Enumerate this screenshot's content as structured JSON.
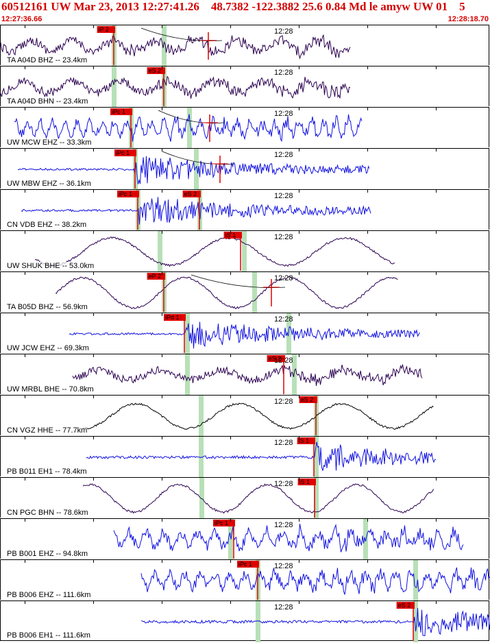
{
  "header": {
    "title": "60512161 UW Mar 23, 2013 12:27:41.26    48.7382 -122.3882 25.6 0.84 Md le amyw UW 01    5",
    "start_time": "12:27:36.66",
    "end_time": "12:28:18.70"
  },
  "time_mark_label": "12:28",
  "colors": {
    "header": "#d40000",
    "pick": "#e00000",
    "window": "#b8e0b8",
    "blue": "#1010e0",
    "purple": "#2a0050",
    "black": "#000000"
  },
  "traces": [
    {
      "label": "TA A04D BHZ -- 23.4km",
      "color": "purple",
      "style": "noisy",
      "start": 0,
      "end": 510,
      "amp": 14,
      "period": 60,
      "onset": 150,
      "windows": [
        165,
        238
      ],
      "picks": [
        {
          "text": "iP 2",
          "x": 165
        },
        {
          "text": "",
          "x": 303
        }
      ],
      "curve": true
    },
    {
      "label": "TA A04D BHN -- 23.4km",
      "color": "purple",
      "style": "noisy",
      "start": 0,
      "end": 510,
      "amp": 14,
      "period": 70,
      "onset": 220,
      "windows": [
        165,
        238
      ],
      "picks": [
        {
          "text": "eS 2",
          "x": 238
        }
      ]
    },
    {
      "label": "UW MCW EHZ -- 33.3km",
      "color": "blue",
      "style": "noisy",
      "start": 20,
      "end": 528,
      "amp": 15,
      "period": 18,
      "onset": 185,
      "windows": [
        190,
        275
      ],
      "picks": [
        {
          "text": "iPc 1",
          "x": 190
        },
        {
          "text": "",
          "x": 305
        }
      ],
      "curve": true
    },
    {
      "label": "UW MBW EHZ -- 36.1km",
      "color": "blue",
      "style": "burst",
      "start": 25,
      "end": 538,
      "amp": 3,
      "period": 10,
      "onset": 195,
      "windows": [
        196,
        285
      ],
      "picks": [
        {
          "text": "iPc 1",
          "x": 196
        },
        {
          "text": "",
          "x": 320
        }
      ],
      "curve": true
    },
    {
      "label": "CN VDB EHZ -- 38.2km",
      "color": "blue",
      "style": "burst",
      "start": 30,
      "end": 540,
      "amp": 3,
      "period": 10,
      "onset": 200,
      "windows": [
        200,
        290
      ],
      "picks": [
        {
          "text": "iPc 1",
          "x": 200
        },
        {
          "text": "eS 2",
          "x": 290
        }
      ]
    },
    {
      "label": "UW SHUK BHE -- 53.0km",
      "color": "purple",
      "style": "wave",
      "start": 50,
      "end": 575,
      "amp": 20,
      "period": 170,
      "onset": 9999,
      "windows": [
        232,
        355
      ],
      "picks": [
        {
          "text": "iS 1",
          "x": 350
        }
      ]
    },
    {
      "label": "TA B05D BHZ -- 56.9km",
      "color": "purple",
      "style": "wave",
      "start": 80,
      "end": 580,
      "amp": 22,
      "period": 150,
      "onset": 235,
      "windows": [
        238,
        370
      ],
      "picks": [
        {
          "text": "eP 2",
          "x": 238
        },
        {
          "text": "",
          "x": 395
        }
      ],
      "curve": true
    },
    {
      "label": "UW JCW EHZ -- 69.3km",
      "color": "blue",
      "style": "burst",
      "start": 100,
      "end": 612,
      "amp": 3,
      "period": 10,
      "onset": 268,
      "windows": [
        272,
        420
      ],
      "picks": [
        {
          "text": "iPd 1",
          "x": 268
        }
      ]
    },
    {
      "label": "UW MRBL BHE -- 70.8km",
      "color": "purple",
      "style": "noisy",
      "start": 105,
      "end": 615,
      "amp": 12,
      "period": 90,
      "onset": 410,
      "windows": [
        272,
        428
      ],
      "picks": [
        {
          "text": "eS 2",
          "x": 413
        }
      ]
    },
    {
      "label": "CN VGZ HHE -- 77.7km",
      "color": "black",
      "style": "wave",
      "start": 120,
      "end": 632,
      "amp": 18,
      "period": 150,
      "onset": 460,
      "windows": [
        292,
        460
      ],
      "picks": [
        {
          "text": "eS 2",
          "x": 460
        }
      ]
    },
    {
      "label": "PB B011 EH1 -- 78.4km",
      "color": "blue",
      "style": "burst",
      "start": 125,
      "end": 635,
      "amp": 4,
      "period": 10,
      "onset": 458,
      "windows": [
        292,
        460
      ],
      "picks": [
        {
          "text": "iS 1",
          "x": 457
        }
      ]
    },
    {
      "label": "CN PGC BHN -- 78.6km",
      "color": "purple",
      "style": "wave",
      "start": 120,
      "end": 632,
      "amp": 20,
      "period": 130,
      "onset": 458,
      "windows": [
        293,
        460
      ],
      "picks": [
        {
          "text": "iS 1",
          "x": 458
        }
      ]
    },
    {
      "label": "PB B001 EHZ -- 94.8km",
      "color": "blue",
      "style": "noisy",
      "start": 165,
      "end": 675,
      "amp": 17,
      "period": 25,
      "onset": 335,
      "windows": [
        335,
        532
      ],
      "picks": [
        {
          "text": "iPc 1",
          "x": 340
        }
      ]
    },
    {
      "label": "PB B006 EHZ -- 111.6km",
      "color": "blue",
      "style": "noisy",
      "start": 205,
      "end": 715,
      "amp": 16,
      "period": 22,
      "onset": 370,
      "windows": [
        375,
        605
      ],
      "picks": [
        {
          "text": "iPc 1",
          "x": 375
        }
      ]
    },
    {
      "label": "PB B006 EH1 -- 111.6km",
      "color": "blue",
      "style": "burst",
      "start": 205,
      "end": 715,
      "amp": 4,
      "period": 10,
      "onset": 602,
      "windows": [
        375,
        605
      ],
      "picks": [
        {
          "text": "eS 2",
          "x": 602
        }
      ]
    }
  ]
}
